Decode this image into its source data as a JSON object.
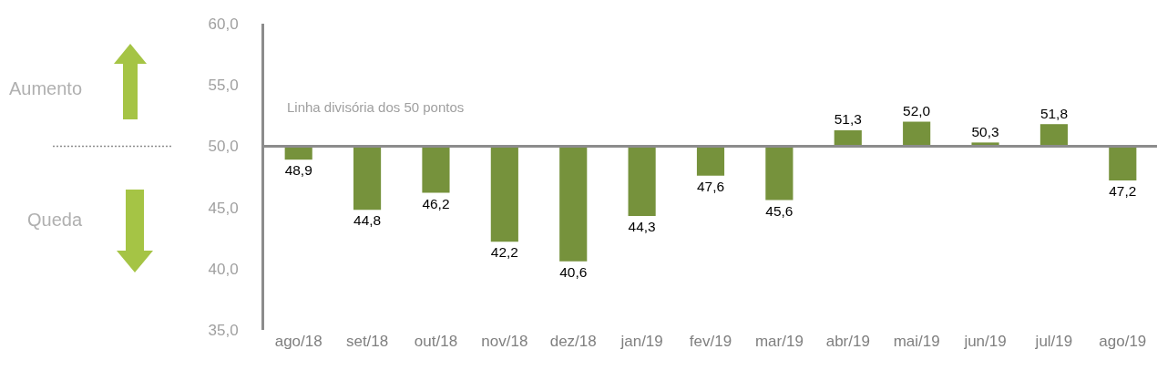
{
  "chart_data": {
    "type": "bar",
    "categories": [
      "ago/18",
      "set/18",
      "out/18",
      "nov/18",
      "dez/18",
      "jan/19",
      "fev/19",
      "mar/19",
      "abr/19",
      "mai/19",
      "jun/19",
      "jul/19",
      "ago/19"
    ],
    "base": [
      50,
      50,
      50,
      50,
      50,
      50,
      50,
      50,
      50,
      50,
      50,
      50,
      50
    ],
    "values": [
      -1.1,
      -5.2,
      -3.8,
      -7.8,
      -9.4,
      -5.7,
      -2.4,
      -4.4,
      1.3,
      2.0,
      0.3,
      1.8,
      -2.8
    ],
    "value_labels": [
      "48,9",
      "44,8",
      "46,2",
      "42,2",
      "40,6",
      "44,3",
      "47,6",
      "45,6",
      "51,3",
      "52,0",
      "50,3",
      "51,8",
      "47,2"
    ],
    "color": "#76923c",
    "ylim": [
      35,
      60
    ],
    "yticks": [
      {
        "value": 35,
        "label": "35,0"
      },
      {
        "value": 40,
        "label": "40,0"
      },
      {
        "value": 45,
        "label": "45,0"
      },
      {
        "value": 50,
        "label": "50,0"
      },
      {
        "value": 55,
        "label": "55,0"
      },
      {
        "value": 60,
        "label": "60,0"
      }
    ],
    "grid": false,
    "legend": false,
    "ref_lines": [
      {
        "axis": "y",
        "value": 50,
        "label": "Linha divisória dos 50 pontos",
        "color": "#8c8c8c"
      }
    ],
    "annotations": [
      "Aumento",
      "Queda"
    ]
  }
}
